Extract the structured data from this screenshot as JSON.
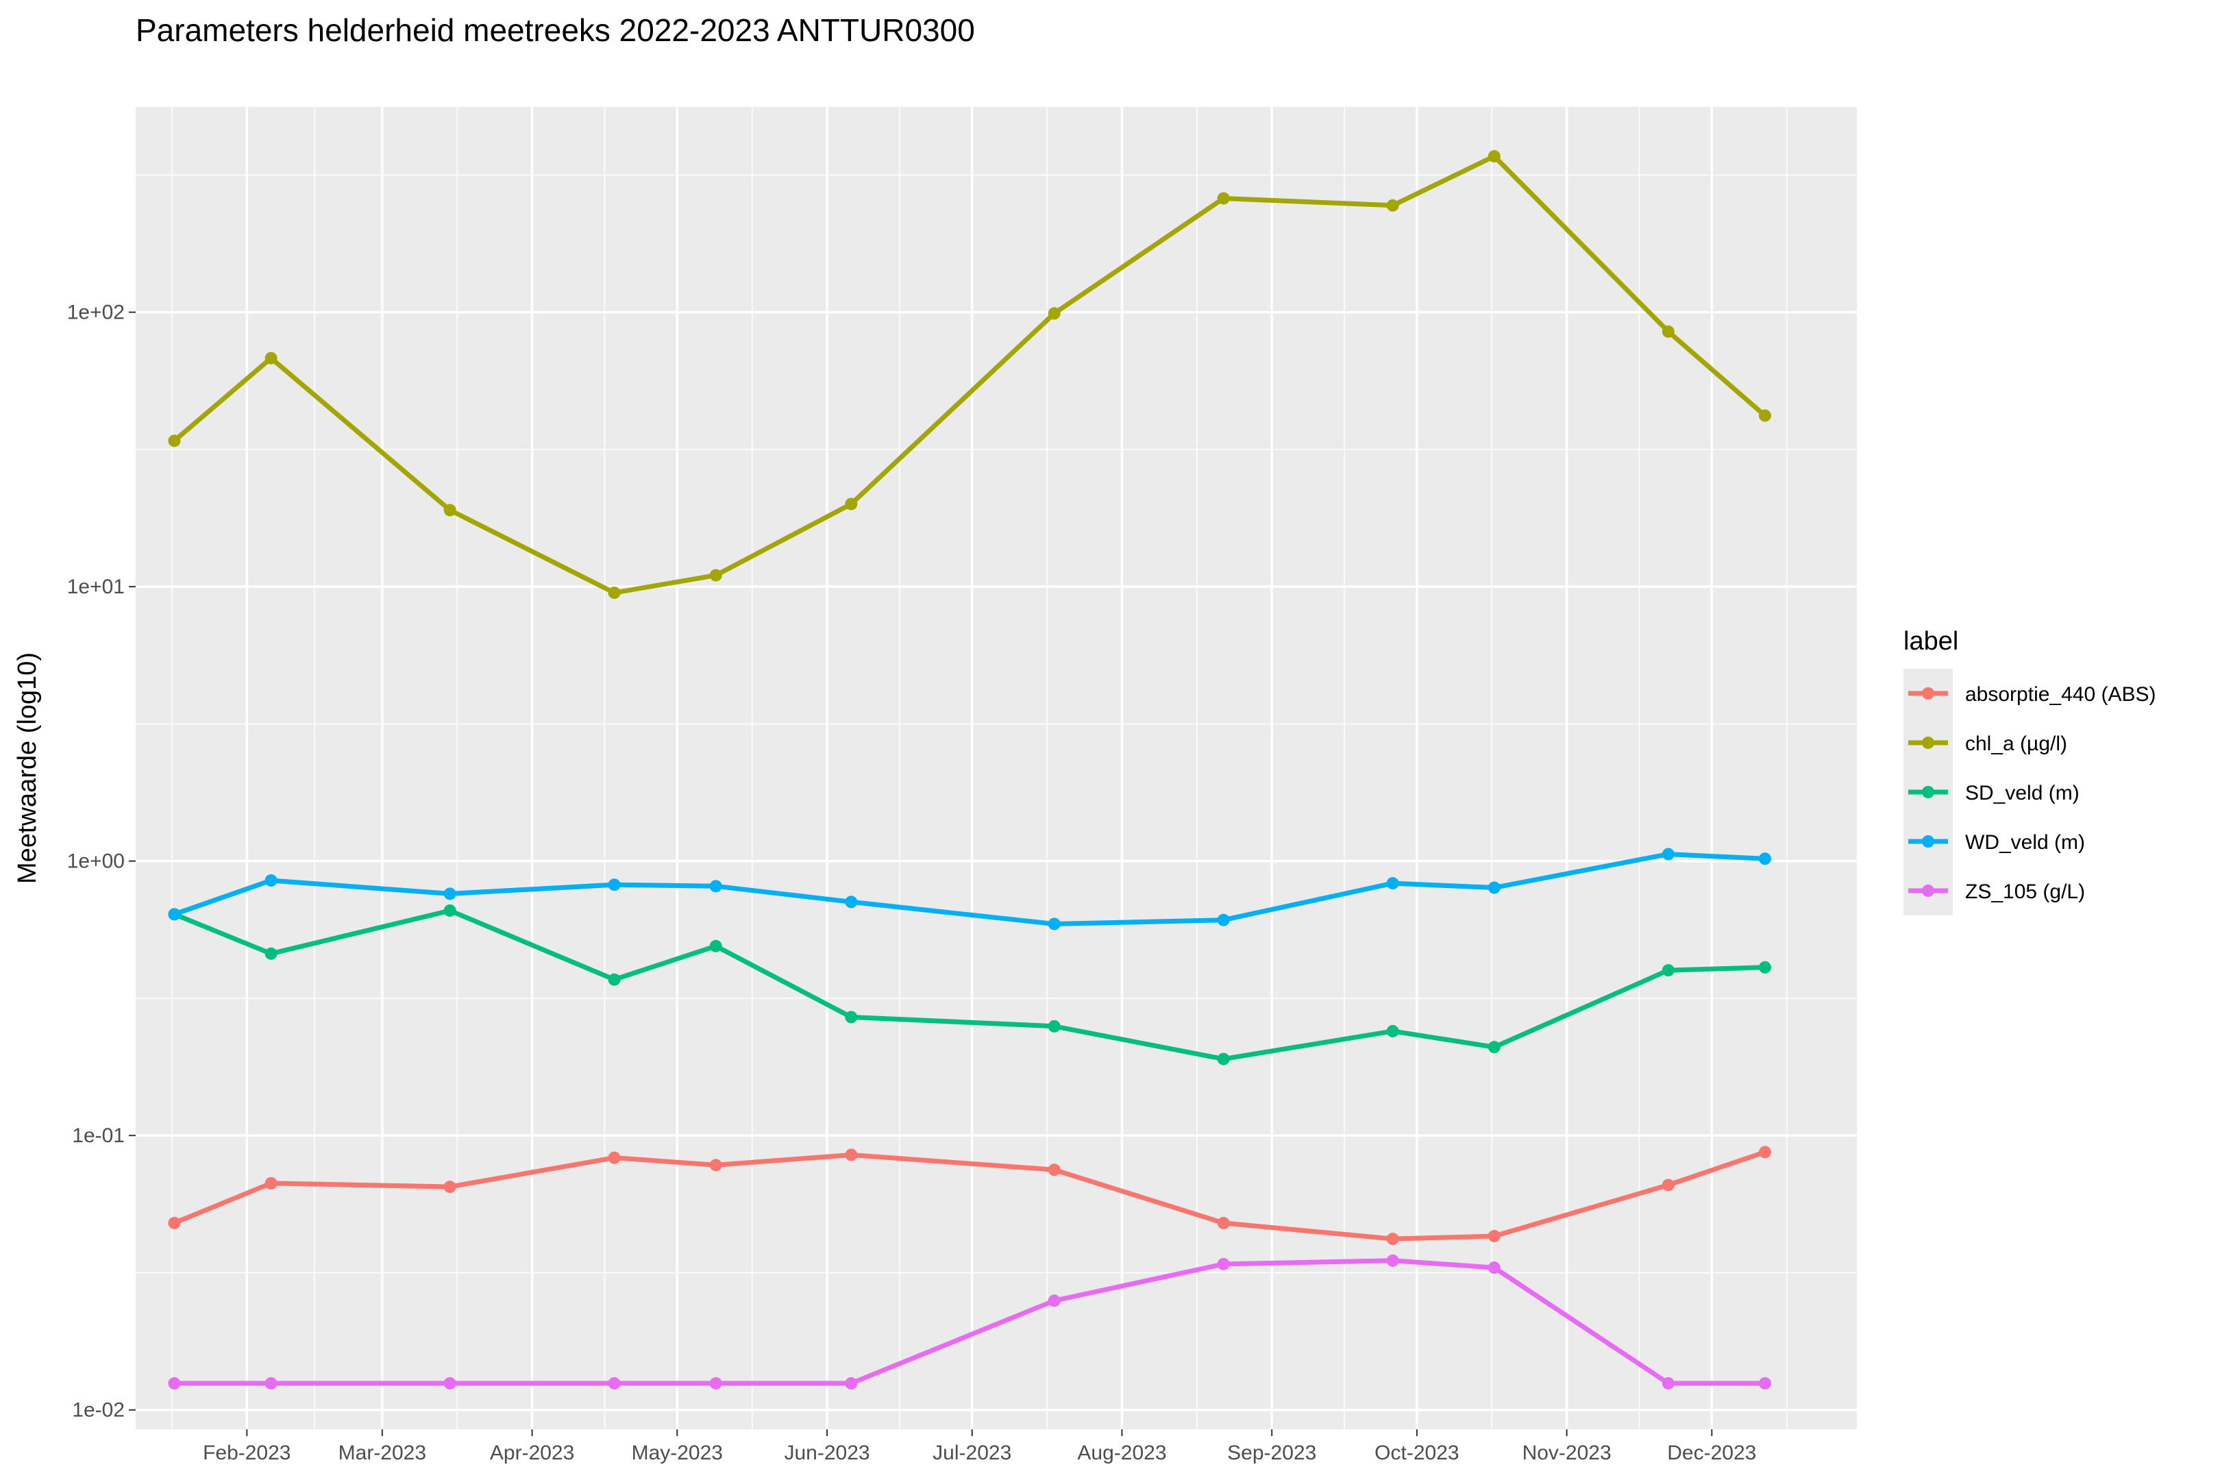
{
  "chart_data": {
    "type": "line",
    "title": "Parameters helderheid meetreeks 2022-2023 ANTTUR0300",
    "xlabel": "",
    "ylabel": "Meetwaarde (log10)",
    "y_scale": "log10",
    "ylim": [
      0.0085,
      560
    ],
    "xlim": [
      "2023-01-09",
      "2023-12-31"
    ],
    "x_ticks": [
      {
        "date": "2023-02-01",
        "label": "Feb-2023"
      },
      {
        "date": "2023-03-01",
        "label": "Mar-2023"
      },
      {
        "date": "2023-04-01",
        "label": "Apr-2023"
      },
      {
        "date": "2023-05-01",
        "label": "May-2023"
      },
      {
        "date": "2023-06-01",
        "label": "Jun-2023"
      },
      {
        "date": "2023-07-01",
        "label": "Jul-2023"
      },
      {
        "date": "2023-08-01",
        "label": "Aug-2023"
      },
      {
        "date": "2023-09-01",
        "label": "Sep-2023"
      },
      {
        "date": "2023-10-01",
        "label": "Oct-2023"
      },
      {
        "date": "2023-11-01",
        "label": "Nov-2023"
      },
      {
        "date": "2023-12-01",
        "label": "Dec-2023"
      }
    ],
    "y_ticks": [
      {
        "value": 0.01,
        "label": "1e-02"
      },
      {
        "value": 0.1,
        "label": "1e-01"
      },
      {
        "value": 1,
        "label": "1e+00"
      },
      {
        "value": 10,
        "label": "1e+01"
      },
      {
        "value": 100,
        "label": "1e+02"
      }
    ],
    "legend": {
      "title": "label",
      "position": "right"
    },
    "grid": true,
    "panel_background": "#ebebeb",
    "series": [
      {
        "name": "absorptie_440 (ABS)",
        "color": "#f8766d",
        "points": [
          {
            "x": "2023-01-17",
            "y": 0.048
          },
          {
            "x": "2023-02-06",
            "y": 0.067
          },
          {
            "x": "2023-03-15",
            "y": 0.065
          },
          {
            "x": "2023-04-18",
            "y": 0.083
          },
          {
            "x": "2023-05-09",
            "y": 0.078
          },
          {
            "x": "2023-06-06",
            "y": 0.085
          },
          {
            "x": "2023-07-18",
            "y": 0.075
          },
          {
            "x": "2023-08-22",
            "y": 0.048
          },
          {
            "x": "2023-09-26",
            "y": 0.042
          },
          {
            "x": "2023-10-17",
            "y": 0.043
          },
          {
            "x": "2023-11-22",
            "y": 0.066
          },
          {
            "x": "2023-12-12",
            "y": 0.087
          }
        ]
      },
      {
        "name": "chl_a (µg/l)",
        "color": "#a3a500",
        "points": [
          {
            "x": "2023-01-17",
            "y": 34
          },
          {
            "x": "2023-02-06",
            "y": 68
          },
          {
            "x": "2023-03-15",
            "y": 19
          },
          {
            "x": "2023-04-18",
            "y": 9.5
          },
          {
            "x": "2023-05-09",
            "y": 11
          },
          {
            "x": "2023-06-06",
            "y": 20
          },
          {
            "x": "2023-07-18",
            "y": 99
          },
          {
            "x": "2023-08-22",
            "y": 260
          },
          {
            "x": "2023-09-26",
            "y": 245
          },
          {
            "x": "2023-10-17",
            "y": 370
          },
          {
            "x": "2023-11-22",
            "y": 85
          },
          {
            "x": "2023-12-12",
            "y": 42
          }
        ]
      },
      {
        "name": "SD_veld (m)",
        "color": "#00bf7d",
        "points": [
          {
            "x": "2023-01-17",
            "y": 0.64
          },
          {
            "x": "2023-02-06",
            "y": 0.46
          },
          {
            "x": "2023-03-15",
            "y": 0.66
          },
          {
            "x": "2023-04-18",
            "y": 0.37
          },
          {
            "x": "2023-05-09",
            "y": 0.49
          },
          {
            "x": "2023-06-06",
            "y": 0.27
          },
          {
            "x": "2023-07-18",
            "y": 0.25
          },
          {
            "x": "2023-08-22",
            "y": 0.19
          },
          {
            "x": "2023-09-26",
            "y": 0.24
          },
          {
            "x": "2023-10-17",
            "y": 0.21
          },
          {
            "x": "2023-11-22",
            "y": 0.4
          },
          {
            "x": "2023-12-12",
            "y": 0.41
          }
        ]
      },
      {
        "name": "WD_veld (m)",
        "color": "#00b0f6",
        "points": [
          {
            "x": "2023-01-17",
            "y": 0.64
          },
          {
            "x": "2023-02-06",
            "y": 0.85
          },
          {
            "x": "2023-03-15",
            "y": 0.76
          },
          {
            "x": "2023-04-18",
            "y": 0.82
          },
          {
            "x": "2023-05-09",
            "y": 0.81
          },
          {
            "x": "2023-06-06",
            "y": 0.71
          },
          {
            "x": "2023-07-18",
            "y": 0.59
          },
          {
            "x": "2023-08-22",
            "y": 0.61
          },
          {
            "x": "2023-09-26",
            "y": 0.83
          },
          {
            "x": "2023-10-17",
            "y": 0.8
          },
          {
            "x": "2023-11-22",
            "y": 1.06
          },
          {
            "x": "2023-12-12",
            "y": 1.02
          }
        ]
      },
      {
        "name": "ZS_105 (g/L)",
        "color": "#e76bf3",
        "points": [
          {
            "x": "2023-01-17",
            "y": 0.0125
          },
          {
            "x": "2023-02-06",
            "y": 0.0125
          },
          {
            "x": "2023-03-15",
            "y": 0.0125
          },
          {
            "x": "2023-04-18",
            "y": 0.0125
          },
          {
            "x": "2023-05-09",
            "y": 0.0125
          },
          {
            "x": "2023-06-06",
            "y": 0.0125
          },
          {
            "x": "2023-07-18",
            "y": 0.025
          },
          {
            "x": "2023-08-22",
            "y": 0.034
          },
          {
            "x": "2023-09-26",
            "y": 0.035
          },
          {
            "x": "2023-10-17",
            "y": 0.033
          },
          {
            "x": "2023-11-22",
            "y": 0.0125
          },
          {
            "x": "2023-12-12",
            "y": 0.0125
          }
        ]
      }
    ]
  }
}
